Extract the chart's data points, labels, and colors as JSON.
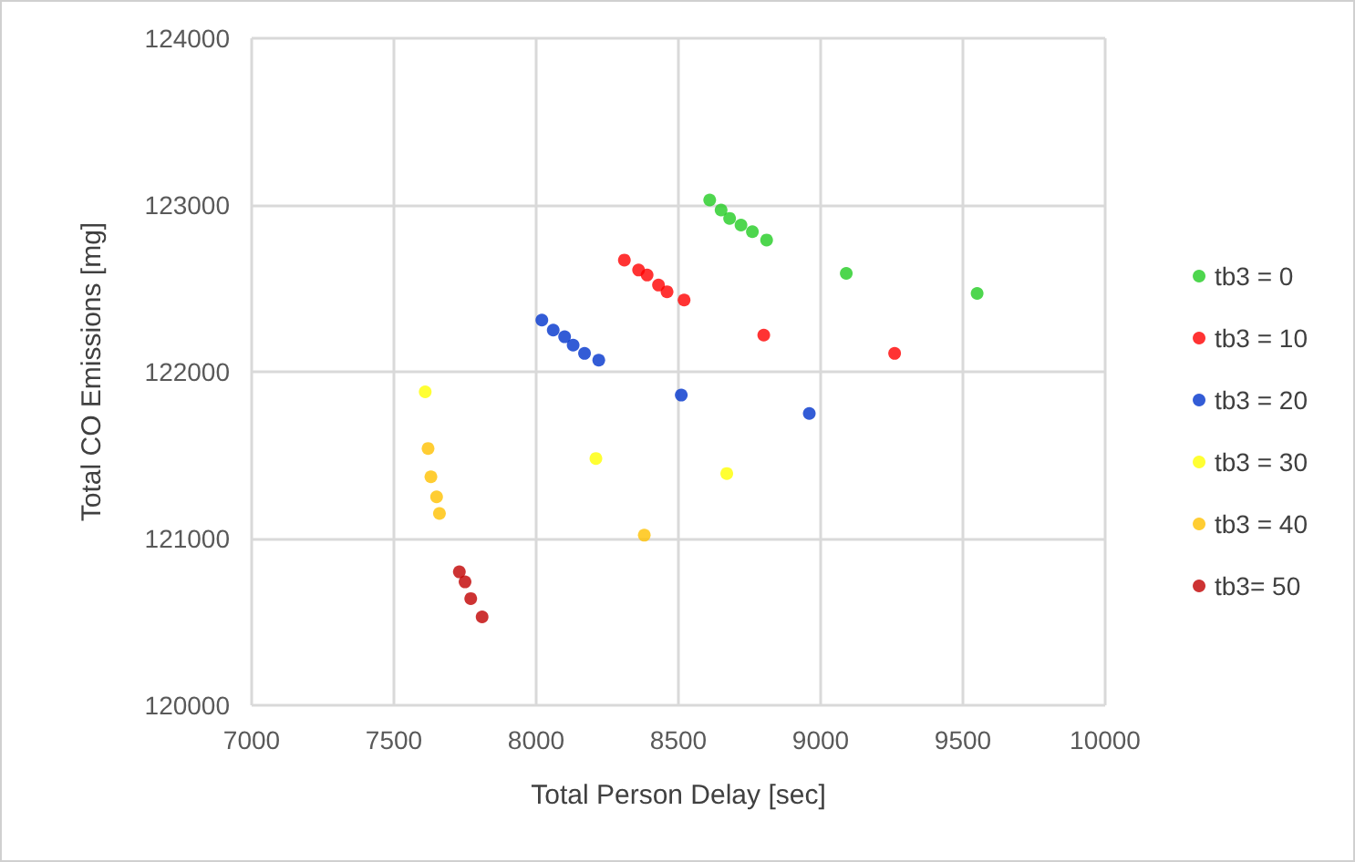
{
  "chart_data": {
    "type": "scatter",
    "xlabel": "Total Person Delay [sec]",
    "ylabel": "Total CO Emissions [mg]",
    "xlim": [
      7000,
      10000
    ],
    "xticks": [
      7000,
      7500,
      8000,
      8500,
      9000,
      9500,
      10000
    ],
    "ylim": [
      120000,
      124000
    ],
    "yticks": [
      120000,
      121000,
      122000,
      123000,
      124000
    ],
    "grid": true,
    "legend": "right",
    "marker": "circle",
    "series": [
      {
        "name": "tb3 = 0",
        "color": "#22cc22",
        "x": [
          8610,
          8650,
          8680,
          8720,
          8760,
          8810,
          9090,
          9550
        ],
        "values": [
          123030,
          122970,
          122920,
          122880,
          122840,
          122790,
          122590,
          122470
        ]
      },
      {
        "name": "tb3 = 10",
        "color": "#ff0000",
        "x": [
          8310,
          8360,
          8390,
          8430,
          8460,
          8520,
          8800,
          9260
        ],
        "values": [
          122670,
          122610,
          122580,
          122520,
          122480,
          122430,
          122220,
          122110
        ]
      },
      {
        "name": "tb3 = 20",
        "color": "#0033cc",
        "x": [
          8020,
          8060,
          8100,
          8130,
          8170,
          8220,
          8510,
          8960
        ],
        "values": [
          122310,
          122250,
          122210,
          122160,
          122110,
          122070,
          121860,
          121750
        ]
      },
      {
        "name": "tb3 = 30",
        "color": "#ffff00",
        "x": [
          7610,
          8210,
          8670
        ],
        "values": [
          121880,
          121480,
          121390
        ]
      },
      {
        "name": "tb3 = 40",
        "color": "#ffc000",
        "x": [
          7620,
          7630,
          7650,
          7660,
          8380
        ],
        "values": [
          121540,
          121370,
          121250,
          121150,
          121020
        ]
      },
      {
        "name": "tb3= 50",
        "color": "#c00000",
        "x": [
          7730,
          7750,
          7770,
          7810
        ],
        "values": [
          120800,
          120740,
          120640,
          120530
        ]
      }
    ]
  }
}
